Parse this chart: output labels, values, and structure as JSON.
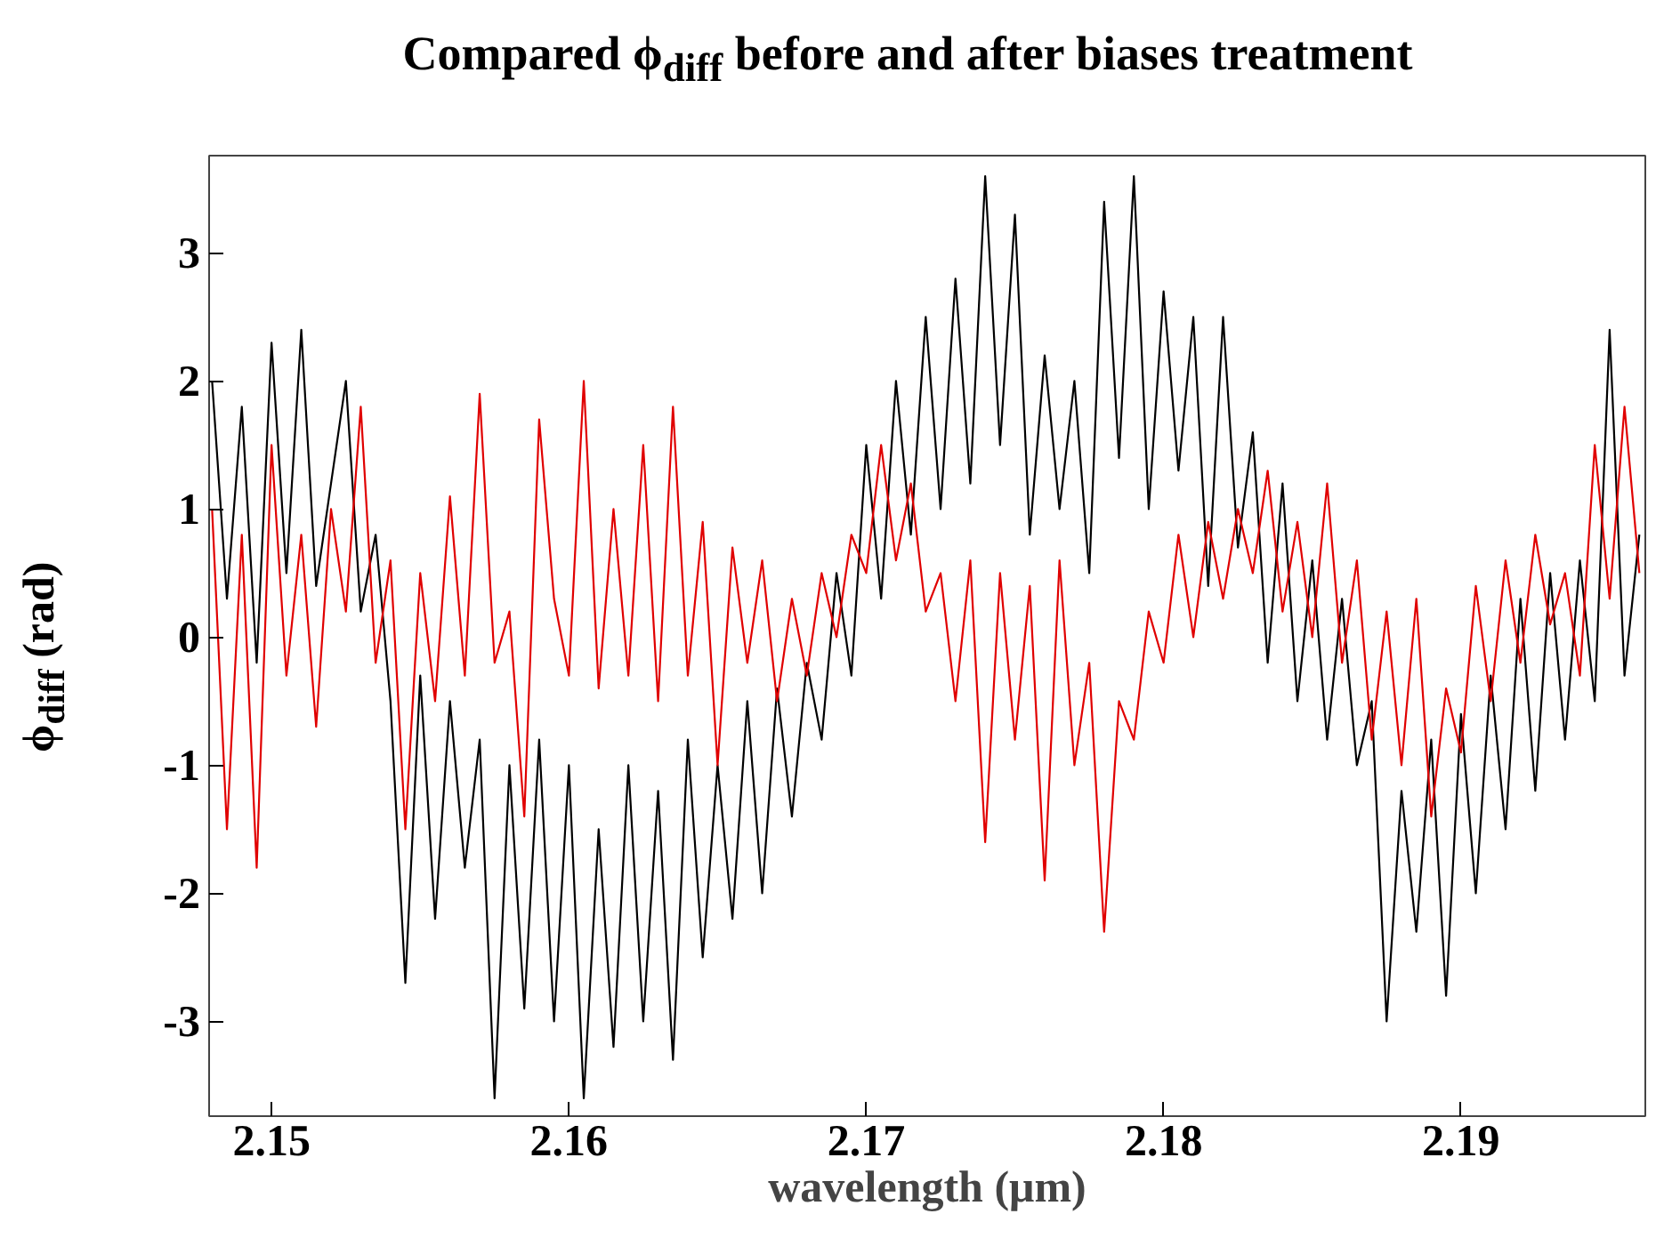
{
  "chart_data": {
    "type": "line",
    "title": "Compared ϕ$_{diff}$ before and after biases treatment",
    "xlabel": "wavelength (μm)",
    "ylabel": "ϕ$_{diff}$ (rad)",
    "x": [
      2.148,
      2.1485,
      2.149,
      2.1495,
      2.15,
      2.1505,
      2.151,
      2.1515,
      2.152,
      2.1525,
      2.153,
      2.1535,
      2.154,
      2.1545,
      2.155,
      2.1555,
      2.156,
      2.1565,
      2.157,
      2.1575,
      2.158,
      2.1585,
      2.159,
      2.1595,
      2.16,
      2.1605,
      2.161,
      2.1615,
      2.162,
      2.1625,
      2.163,
      2.1635,
      2.164,
      2.1645,
      2.165,
      2.1655,
      2.166,
      2.1665,
      2.167,
      2.1675,
      2.168,
      2.1685,
      2.169,
      2.1695,
      2.17,
      2.1705,
      2.171,
      2.1715,
      2.172,
      2.1725,
      2.173,
      2.1735,
      2.174,
      2.1745,
      2.175,
      2.1755,
      2.176,
      2.1765,
      2.177,
      2.1775,
      2.178,
      2.1785,
      2.179,
      2.1795,
      2.18,
      2.1805,
      2.181,
      2.1815,
      2.182,
      2.1825,
      2.183,
      2.1835,
      2.184,
      2.1845,
      2.185,
      2.1855,
      2.186,
      2.1865,
      2.187,
      2.1875,
      2.188,
      2.1885,
      2.189,
      2.1895,
      2.19,
      2.1905,
      2.191,
      2.1915,
      2.192,
      2.1925,
      2.193,
      2.1935,
      2.194,
      2.1945,
      2.195,
      2.1955,
      2.196
    ],
    "series": [
      {
        "color": "#000000",
        "values": [
          2.0,
          0.3,
          1.8,
          -0.2,
          2.3,
          0.5,
          2.4,
          0.4,
          1.2,
          2.0,
          0.2,
          0.8,
          -0.5,
          -2.7,
          -0.3,
          -2.2,
          -0.5,
          -1.8,
          -0.8,
          -3.6,
          -1.0,
          -2.9,
          -0.8,
          -3.0,
          -1.0,
          -3.6,
          -1.5,
          -3.2,
          -1.0,
          -3.0,
          -1.2,
          -3.3,
          -0.8,
          -2.5,
          -1.0,
          -2.2,
          -0.5,
          -2.0,
          -0.4,
          -1.4,
          -0.2,
          -0.8,
          0.5,
          -0.3,
          1.5,
          0.3,
          2.0,
          0.8,
          2.5,
          1.0,
          2.8,
          1.2,
          3.6,
          1.5,
          3.3,
          0.8,
          2.2,
          1.0,
          2.0,
          0.5,
          3.4,
          1.4,
          3.6,
          1.0,
          2.7,
          1.3,
          2.5,
          0.4,
          2.5,
          0.7,
          1.6,
          -0.2,
          1.2,
          -0.5,
          0.6,
          -0.8,
          0.3,
          -1.0,
          -0.5,
          -3.0,
          -1.2,
          -2.3,
          -0.8,
          -2.8,
          -0.6,
          -2.0,
          -0.3,
          -1.5,
          0.3,
          -1.2,
          0.5,
          -0.8,
          0.6,
          -0.5,
          2.4,
          -0.3,
          0.8
        ]
      },
      {
        "color": "#e00000",
        "values": [
          1.0,
          -1.5,
          0.8,
          -1.8,
          1.5,
          -0.3,
          0.8,
          -0.7,
          1.0,
          0.2,
          1.8,
          -0.2,
          0.6,
          -1.5,
          0.5,
          -0.5,
          1.1,
          -0.3,
          1.9,
          -0.2,
          0.2,
          -1.4,
          1.7,
          0.3,
          -0.3,
          2.0,
          -0.4,
          1.0,
          -0.3,
          1.5,
          -0.5,
          1.8,
          -0.3,
          0.9,
          -1.0,
          0.7,
          -0.2,
          0.6,
          -0.5,
          0.3,
          -0.3,
          0.5,
          0.0,
          0.8,
          0.5,
          1.5,
          0.6,
          1.2,
          0.2,
          0.5,
          -0.5,
          0.6,
          -1.6,
          0.5,
          -0.8,
          0.4,
          -1.9,
          0.6,
          -1.0,
          -0.2,
          -2.3,
          -0.5,
          -0.8,
          0.2,
          -0.2,
          0.8,
          0.0,
          0.9,
          0.3,
          1.0,
          0.5,
          1.3,
          0.2,
          0.9,
          0.0,
          1.2,
          -0.2,
          0.6,
          -0.8,
          0.2,
          -1.0,
          0.3,
          -1.4,
          -0.4,
          -0.9,
          0.4,
          -0.5,
          0.6,
          -0.2,
          0.8,
          0.1,
          0.5,
          -0.3,
          1.5,
          0.3,
          1.8,
          0.5
        ]
      }
    ],
    "xlim": [
      2.1479,
      2.1962
    ],
    "ylim": [
      -3.74,
      3.76
    ],
    "xticks": [
      2.15,
      2.16,
      2.17,
      2.18,
      2.19
    ],
    "yticks": [
      -3,
      -2,
      -1,
      0,
      1,
      2,
      3
    ],
    "grid": false,
    "marker": "none",
    "line_style": "solid"
  }
}
